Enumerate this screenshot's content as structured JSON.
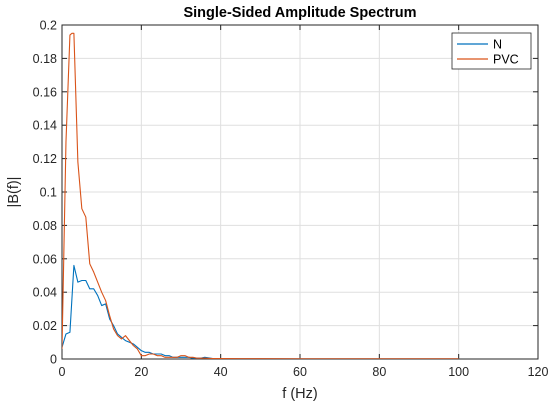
{
  "chart_data": {
    "type": "line",
    "title": "Single-Sided Amplitude Spectrum",
    "xlabel": "f (Hz)",
    "ylabel": "|B(f)|",
    "xlim": [
      0,
      120
    ],
    "ylim": [
      0,
      0.2
    ],
    "xticks": [
      0,
      20,
      40,
      60,
      80,
      100,
      120
    ],
    "yticks": [
      0,
      0.02,
      0.04,
      0.06,
      0.08,
      0.1,
      0.12,
      0.14,
      0.16,
      0.18,
      0.2
    ],
    "xtick_labels": [
      "0",
      "20",
      "40",
      "60",
      "80",
      "100",
      "120"
    ],
    "ytick_labels": [
      "0",
      "0.02",
      "0.04",
      "0.06",
      "0.08",
      "0.1",
      "0.12",
      "0.14",
      "0.16",
      "0.18",
      "0.2"
    ],
    "grid": true,
    "legend_position": "top-right",
    "series": [
      {
        "name": "N",
        "color": "#0072bd",
        "x": [
          0,
          1,
          2,
          3,
          4,
          5,
          6,
          7,
          8,
          9,
          10,
          11,
          12,
          13,
          14,
          15,
          16,
          17,
          18,
          19,
          20,
          21,
          22,
          23,
          24,
          25,
          26,
          27,
          28,
          29,
          30,
          31,
          32,
          33,
          34,
          35,
          36,
          38,
          40,
          45,
          50,
          60,
          70,
          80,
          90,
          100
        ],
        "y": [
          0.007,
          0.015,
          0.016,
          0.056,
          0.046,
          0.047,
          0.047,
          0.042,
          0.042,
          0.038,
          0.032,
          0.033,
          0.024,
          0.02,
          0.015,
          0.013,
          0.011,
          0.01,
          0.009,
          0.007,
          0.005,
          0.004,
          0.004,
          0.003,
          0.003,
          0.003,
          0.002,
          0.002,
          0.001,
          0.001,
          0.001,
          0.001,
          0.001,
          0.0005,
          0.0005,
          0.0005,
          0.001,
          0.0003,
          0.0003,
          0.0002,
          0.0002,
          0.0001,
          0.0001,
          0.0001,
          0.0001,
          0.0001
        ]
      },
      {
        "name": "PVC",
        "color": "#d95319",
        "x": [
          0,
          1,
          2,
          2.5,
          3,
          4,
          5,
          6,
          7,
          8,
          9,
          10,
          11,
          12,
          13,
          14,
          15,
          16,
          17,
          18,
          19,
          20,
          21,
          22,
          23,
          24,
          25,
          26,
          27,
          28,
          29,
          30,
          31,
          32,
          33,
          34,
          36,
          38,
          40,
          45,
          50,
          60,
          70,
          80,
          90,
          100
        ],
        "y": [
          0.006,
          0.13,
          0.194,
          0.195,
          0.195,
          0.118,
          0.09,
          0.085,
          0.057,
          0.052,
          0.046,
          0.04,
          0.035,
          0.026,
          0.018,
          0.014,
          0.012,
          0.014,
          0.011,
          0.008,
          0.006,
          0.002,
          0.002,
          0.003,
          0.003,
          0.002,
          0.002,
          0.001,
          0.001,
          0.001,
          0.001,
          0.002,
          0.002,
          0.001,
          0.001,
          0.0005,
          0.0005,
          0.0003,
          0.0003,
          0.0002,
          0.0002,
          0.0001,
          0.0001,
          0.0001,
          0.0001,
          0.0001
        ]
      }
    ]
  }
}
